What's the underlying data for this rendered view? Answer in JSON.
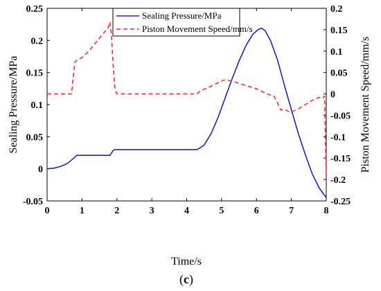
{
  "chart_data": {
    "type": "line",
    "xlabel": "Time/s",
    "ylabel_left": "Sealing Pressure/MPa",
    "ylabel_right": "Piston Movement Speed/mm/s",
    "xlim": [
      0,
      8
    ],
    "ylim_left": [
      -0.05,
      0.25
    ],
    "ylim_right": [
      -0.25,
      0.2
    ],
    "x_ticks": [
      "0",
      "1",
      "2",
      "3",
      "4",
      "5",
      "6",
      "7",
      "8"
    ],
    "y_left_ticks": [
      "-0.05",
      "0",
      "0.05",
      "0.1",
      "0.15",
      "0.2",
      "0.25"
    ],
    "y_right_ticks": [
      "-0.25",
      "-0.2",
      "-0.15",
      "-0.1",
      "-0.05",
      "0",
      "0.05",
      "0.1",
      "0.15",
      "0.2"
    ],
    "grid": false,
    "legend_position": "top-center",
    "series": [
      {
        "name": "Sealing Pressure/MPa",
        "axis": "left",
        "color": "#1f1fd6",
        "style": "solid",
        "x": [
          0,
          0.2,
          0.4,
          0.6,
          0.75,
          0.85,
          1.0,
          1.2,
          1.5,
          1.8,
          1.85,
          1.9,
          1.95,
          2.0,
          2.5,
          3.0,
          3.5,
          4.0,
          4.3,
          4.5,
          4.7,
          4.9,
          5.1,
          5.3,
          5.5,
          5.7,
          5.9,
          6.05,
          6.15,
          6.25,
          6.4,
          6.6,
          6.8,
          7.0,
          7.2,
          7.4,
          7.6,
          7.8,
          8.0
        ],
        "y": [
          0.0,
          0.001,
          0.004,
          0.009,
          0.016,
          0.021,
          0.021,
          0.021,
          0.021,
          0.021,
          0.025,
          0.029,
          0.03,
          0.03,
          0.03,
          0.03,
          0.03,
          0.03,
          0.03,
          0.037,
          0.055,
          0.08,
          0.11,
          0.14,
          0.168,
          0.192,
          0.21,
          0.217,
          0.219,
          0.215,
          0.2,
          0.17,
          0.13,
          0.092,
          0.055,
          0.022,
          -0.008,
          -0.03,
          -0.045
        ]
      },
      {
        "name": "Piston Movement Speed/mm/s",
        "axis": "right",
        "color": "#ff2a2a",
        "style": "dashed",
        "x": [
          0,
          0.5,
          0.7,
          0.75,
          0.8,
          0.85,
          1.0,
          1.2,
          1.4,
          1.6,
          1.75,
          1.8,
          1.85,
          1.9,
          1.95,
          2.0,
          2.5,
          3.0,
          3.5,
          4.0,
          4.3,
          4.4,
          4.6,
          4.8,
          5.0,
          5.1,
          5.3,
          5.6,
          6.0,
          6.3,
          6.5,
          6.6,
          6.7,
          6.8,
          6.9,
          7.0,
          7.2,
          7.4,
          7.6,
          7.8,
          7.9,
          7.95,
          8.0
        ],
        "y": [
          0.0,
          0.0,
          0.0,
          0.04,
          0.075,
          0.078,
          0.085,
          0.1,
          0.12,
          0.14,
          0.155,
          0.168,
          0.13,
          0.06,
          0.01,
          0.0,
          0.0,
          0.0,
          0.0,
          0.0,
          0.0,
          0.008,
          0.014,
          0.022,
          0.03,
          0.033,
          0.03,
          0.022,
          0.012,
          0.0,
          -0.005,
          -0.02,
          -0.038,
          -0.036,
          -0.04,
          -0.042,
          -0.035,
          -0.025,
          -0.015,
          -0.008,
          -0.01,
          -0.005,
          -0.2
        ]
      }
    ]
  },
  "caption": {
    "open": "(",
    "letter": "c",
    "close": ")"
  }
}
